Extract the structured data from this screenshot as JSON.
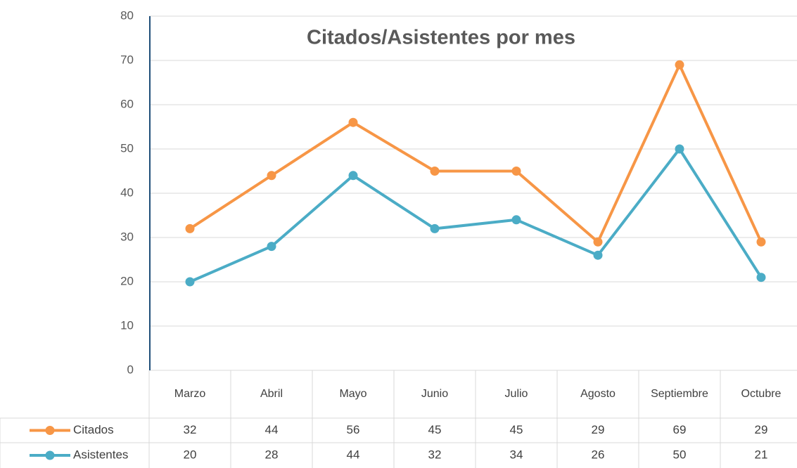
{
  "chart_data": {
    "type": "line",
    "title": "Citados/Asistentes por mes",
    "categories": [
      "Marzo",
      "Abril",
      "Mayo",
      "Junio",
      "Julio",
      "Agosto",
      "Septiembre",
      "Octubre"
    ],
    "series": [
      {
        "name": "Citados",
        "color": "#f79646",
        "values": [
          32,
          44,
          56,
          45,
          45,
          29,
          69,
          29
        ]
      },
      {
        "name": "Asistentes",
        "color": "#4bacc6",
        "values": [
          20,
          28,
          44,
          32,
          34,
          26,
          50,
          21
        ]
      }
    ],
    "ylim": [
      0,
      80
    ],
    "yticks": [
      0,
      10,
      20,
      30,
      40,
      50,
      60,
      70,
      80
    ],
    "grid": true,
    "data_table": true
  }
}
